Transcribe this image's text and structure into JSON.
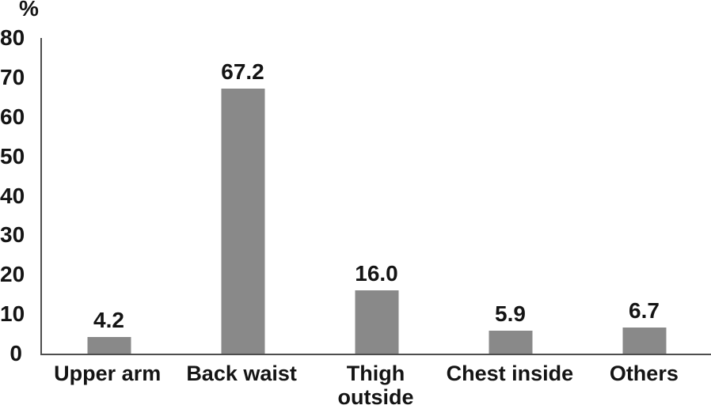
{
  "chart_data": {
    "type": "bar",
    "title": "",
    "ylabel": "%",
    "xlabel": "",
    "categories": [
      "Upper arm",
      "Back waist",
      "Thigh outside",
      "Chest inside",
      "Others"
    ],
    "values": [
      4.2,
      67.2,
      16.0,
      5.9,
      6.7
    ],
    "value_labels": [
      "4.2",
      "67.2",
      "16.0",
      "5.9",
      "6.7"
    ],
    "yticks": [
      0,
      10,
      20,
      30,
      40,
      50,
      60,
      70,
      80
    ],
    "ylim": [
      0,
      80
    ],
    "grid": false,
    "legend": "none",
    "bar_color": "#898989",
    "axis_color": "#4d4d4d",
    "text_color": "#141414"
  }
}
